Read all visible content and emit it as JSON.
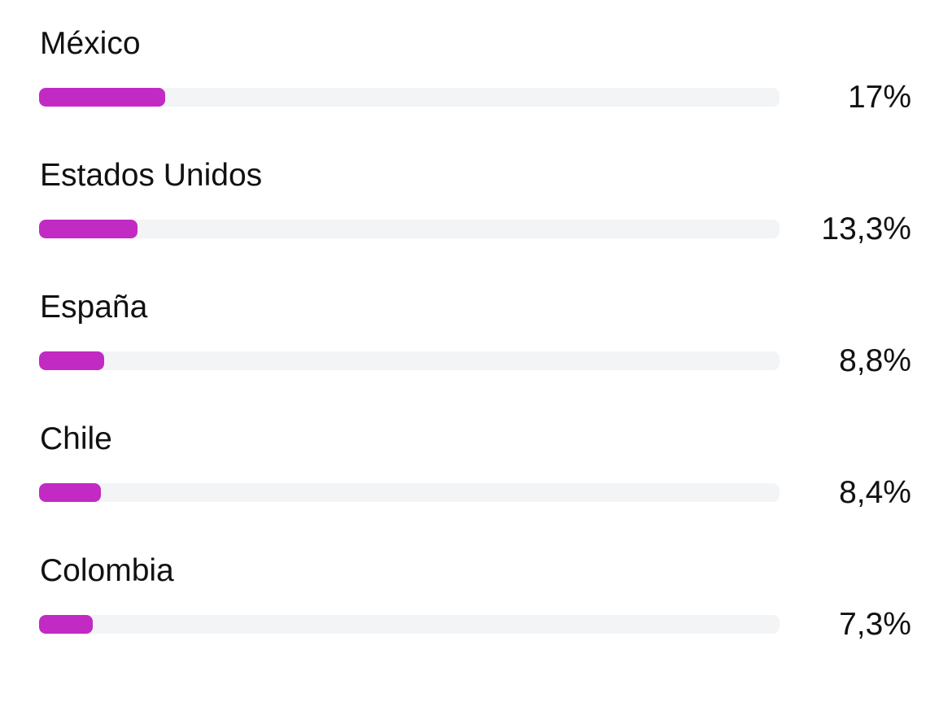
{
  "accent_color": "#c22ac4",
  "track_color": "#f3f4f6",
  "rows": [
    {
      "country": "México",
      "percent_label": "17%",
      "fill_fraction": 0.17
    },
    {
      "country": "Estados Unidos",
      "percent_label": "13,3%",
      "fill_fraction": 0.133
    },
    {
      "country": "España",
      "percent_label": "8,8%",
      "fill_fraction": 0.088
    },
    {
      "country": "Chile",
      "percent_label": "8,4%",
      "fill_fraction": 0.084
    },
    {
      "country": "Colombia",
      "percent_label": "7,3%",
      "fill_fraction": 0.073
    }
  ]
}
